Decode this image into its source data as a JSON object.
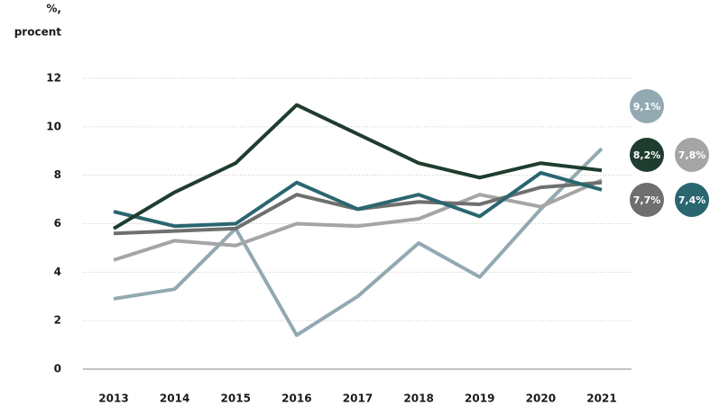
{
  "chart_data": {
    "type": "line",
    "ylabel": [
      "%,",
      "procent"
    ],
    "categories": [
      "2013",
      "2014",
      "2015",
      "2016",
      "2017",
      "2018",
      "2019",
      "2020",
      "2021"
    ],
    "series": [
      {
        "color": "#93a9b2",
        "values": [
          2.9,
          3.3,
          5.8,
          1.4,
          3.0,
          5.2,
          3.8,
          6.6,
          9.1
        ],
        "value_labels": [
          null,
          null,
          null,
          null,
          null,
          null,
          null,
          null,
          "9,1%"
        ]
      },
      {
        "color": "#a5a5a5",
        "values": [
          4.5,
          5.3,
          5.1,
          6.0,
          5.9,
          6.2,
          7.2,
          6.7,
          7.8
        ],
        "value_labels": [
          null,
          null,
          null,
          null,
          null,
          null,
          null,
          null,
          "7,8%"
        ]
      },
      {
        "color": "#6e706e",
        "values": [
          5.6,
          5.7,
          5.8,
          7.2,
          6.6,
          6.9,
          6.8,
          7.5,
          7.7
        ],
        "value_labels": [
          null,
          null,
          null,
          null,
          null,
          null,
          null,
          null,
          "7,7%"
        ]
      },
      {
        "color": "#2a6670",
        "values": [
          6.5,
          5.9,
          6.0,
          7.7,
          6.6,
          7.2,
          6.3,
          8.1,
          7.4
        ],
        "value_labels": [
          null,
          null,
          null,
          null,
          null,
          null,
          null,
          null,
          "7,4%"
        ]
      },
      {
        "color": "#1f3d2e",
        "values": [
          5.8,
          7.3,
          8.5,
          10.9,
          9.7,
          8.5,
          7.9,
          8.5,
          8.2
        ],
        "value_labels": [
          null,
          null,
          null,
          null,
          null,
          null,
          null,
          null,
          "8,2%"
        ]
      }
    ],
    "ylim": [
      0,
      12
    ],
    "yticks": [
      0,
      2,
      4,
      6,
      8,
      10,
      12
    ],
    "grid": true
  }
}
